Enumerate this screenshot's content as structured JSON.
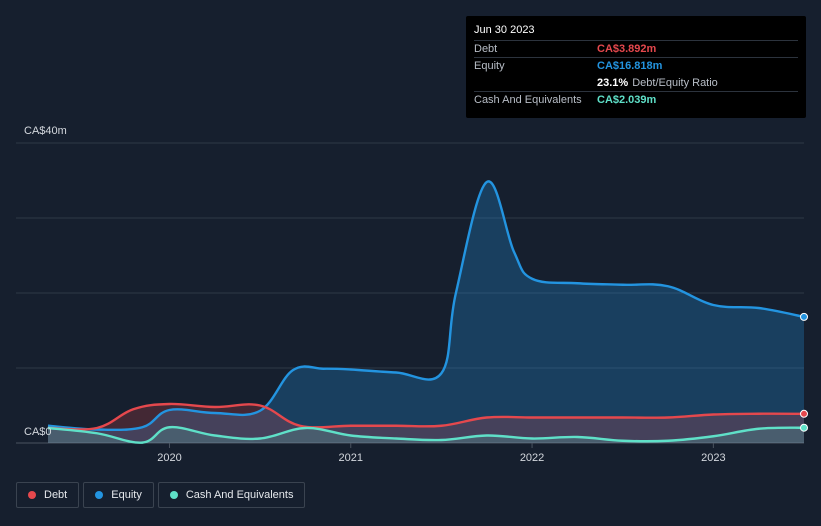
{
  "chart_data": {
    "type": "area",
    "title": "",
    "y_top_label": "CA$40m",
    "y_bottom_label": "CA$0",
    "ylim": [
      0,
      40
    ],
    "xlim": [
      2019.33,
      2023.5
    ],
    "x_ticks": [
      {
        "value": 2020,
        "label": "2020"
      },
      {
        "value": 2021,
        "label": "2021"
      },
      {
        "value": 2022,
        "label": "2022"
      },
      {
        "value": 2023,
        "label": "2023"
      }
    ],
    "series": [
      {
        "name": "Equity",
        "color": "#2394e0",
        "points": [
          [
            2019.33,
            2.3
          ],
          [
            2019.6,
            1.8
          ],
          [
            2019.85,
            2.1
          ],
          [
            2020.0,
            4.4
          ],
          [
            2020.25,
            4.0
          ],
          [
            2020.5,
            4.3
          ],
          [
            2020.68,
            9.7
          ],
          [
            2020.85,
            9.9
          ],
          [
            2021.0,
            9.8
          ],
          [
            2021.25,
            9.4
          ],
          [
            2021.5,
            9.3
          ],
          [
            2021.58,
            20.0
          ],
          [
            2021.75,
            34.8
          ],
          [
            2021.9,
            25.5
          ],
          [
            2022.0,
            21.9
          ],
          [
            2022.25,
            21.3
          ],
          [
            2022.5,
            21.1
          ],
          [
            2022.75,
            20.9
          ],
          [
            2023.0,
            18.4
          ],
          [
            2023.25,
            18.0
          ],
          [
            2023.5,
            16.818
          ]
        ]
      },
      {
        "name": "Debt",
        "color": "#e5484d",
        "points": [
          [
            2019.33,
            2.0
          ],
          [
            2019.6,
            2.0
          ],
          [
            2019.8,
            4.5
          ],
          [
            2020.0,
            5.2
          ],
          [
            2020.25,
            4.8
          ],
          [
            2020.5,
            5.0
          ],
          [
            2020.72,
            2.3
          ],
          [
            2021.0,
            2.3
          ],
          [
            2021.25,
            2.3
          ],
          [
            2021.5,
            2.3
          ],
          [
            2021.75,
            3.4
          ],
          [
            2022.0,
            3.4
          ],
          [
            2022.25,
            3.4
          ],
          [
            2022.5,
            3.4
          ],
          [
            2022.75,
            3.4
          ],
          [
            2023.0,
            3.8
          ],
          [
            2023.25,
            3.9
          ],
          [
            2023.5,
            3.892
          ]
        ]
      },
      {
        "name": "Cash And Equivalents",
        "color": "#5fe0c8",
        "points": [
          [
            2019.33,
            2.0
          ],
          [
            2019.6,
            1.3
          ],
          [
            2019.85,
            0.05
          ],
          [
            2020.0,
            2.1
          ],
          [
            2020.25,
            1.0
          ],
          [
            2020.5,
            0.6
          ],
          [
            2020.75,
            2.0
          ],
          [
            2021.0,
            1.0
          ],
          [
            2021.25,
            0.6
          ],
          [
            2021.5,
            0.4
          ],
          [
            2021.75,
            1.0
          ],
          [
            2022.0,
            0.6
          ],
          [
            2022.25,
            0.8
          ],
          [
            2022.5,
            0.3
          ],
          [
            2022.75,
            0.3
          ],
          [
            2023.0,
            0.9
          ],
          [
            2023.25,
            1.9
          ],
          [
            2023.5,
            2.039
          ]
        ]
      }
    ],
    "legend": [
      {
        "label": "Debt",
        "color": "#e5484d"
      },
      {
        "label": "Equity",
        "color": "#2394e0"
      },
      {
        "label": "Cash And Equivalents",
        "color": "#5fe0c8"
      }
    ],
    "tooltip": {
      "date": "Jun 30 2023",
      "rows": [
        {
          "label": "Debt",
          "value": "CA$3.892m",
          "color": "#e5484d"
        },
        {
          "label": "Equity",
          "value": "CA$16.818m",
          "color": "#2394e0"
        },
        {
          "label": "",
          "value": "23.1%",
          "suffix": "Debt/Equity Ratio",
          "color": "#ffffff"
        },
        {
          "label": "Cash And Equivalents",
          "value": "CA$2.039m",
          "color": "#5fe0c8"
        }
      ]
    }
  }
}
